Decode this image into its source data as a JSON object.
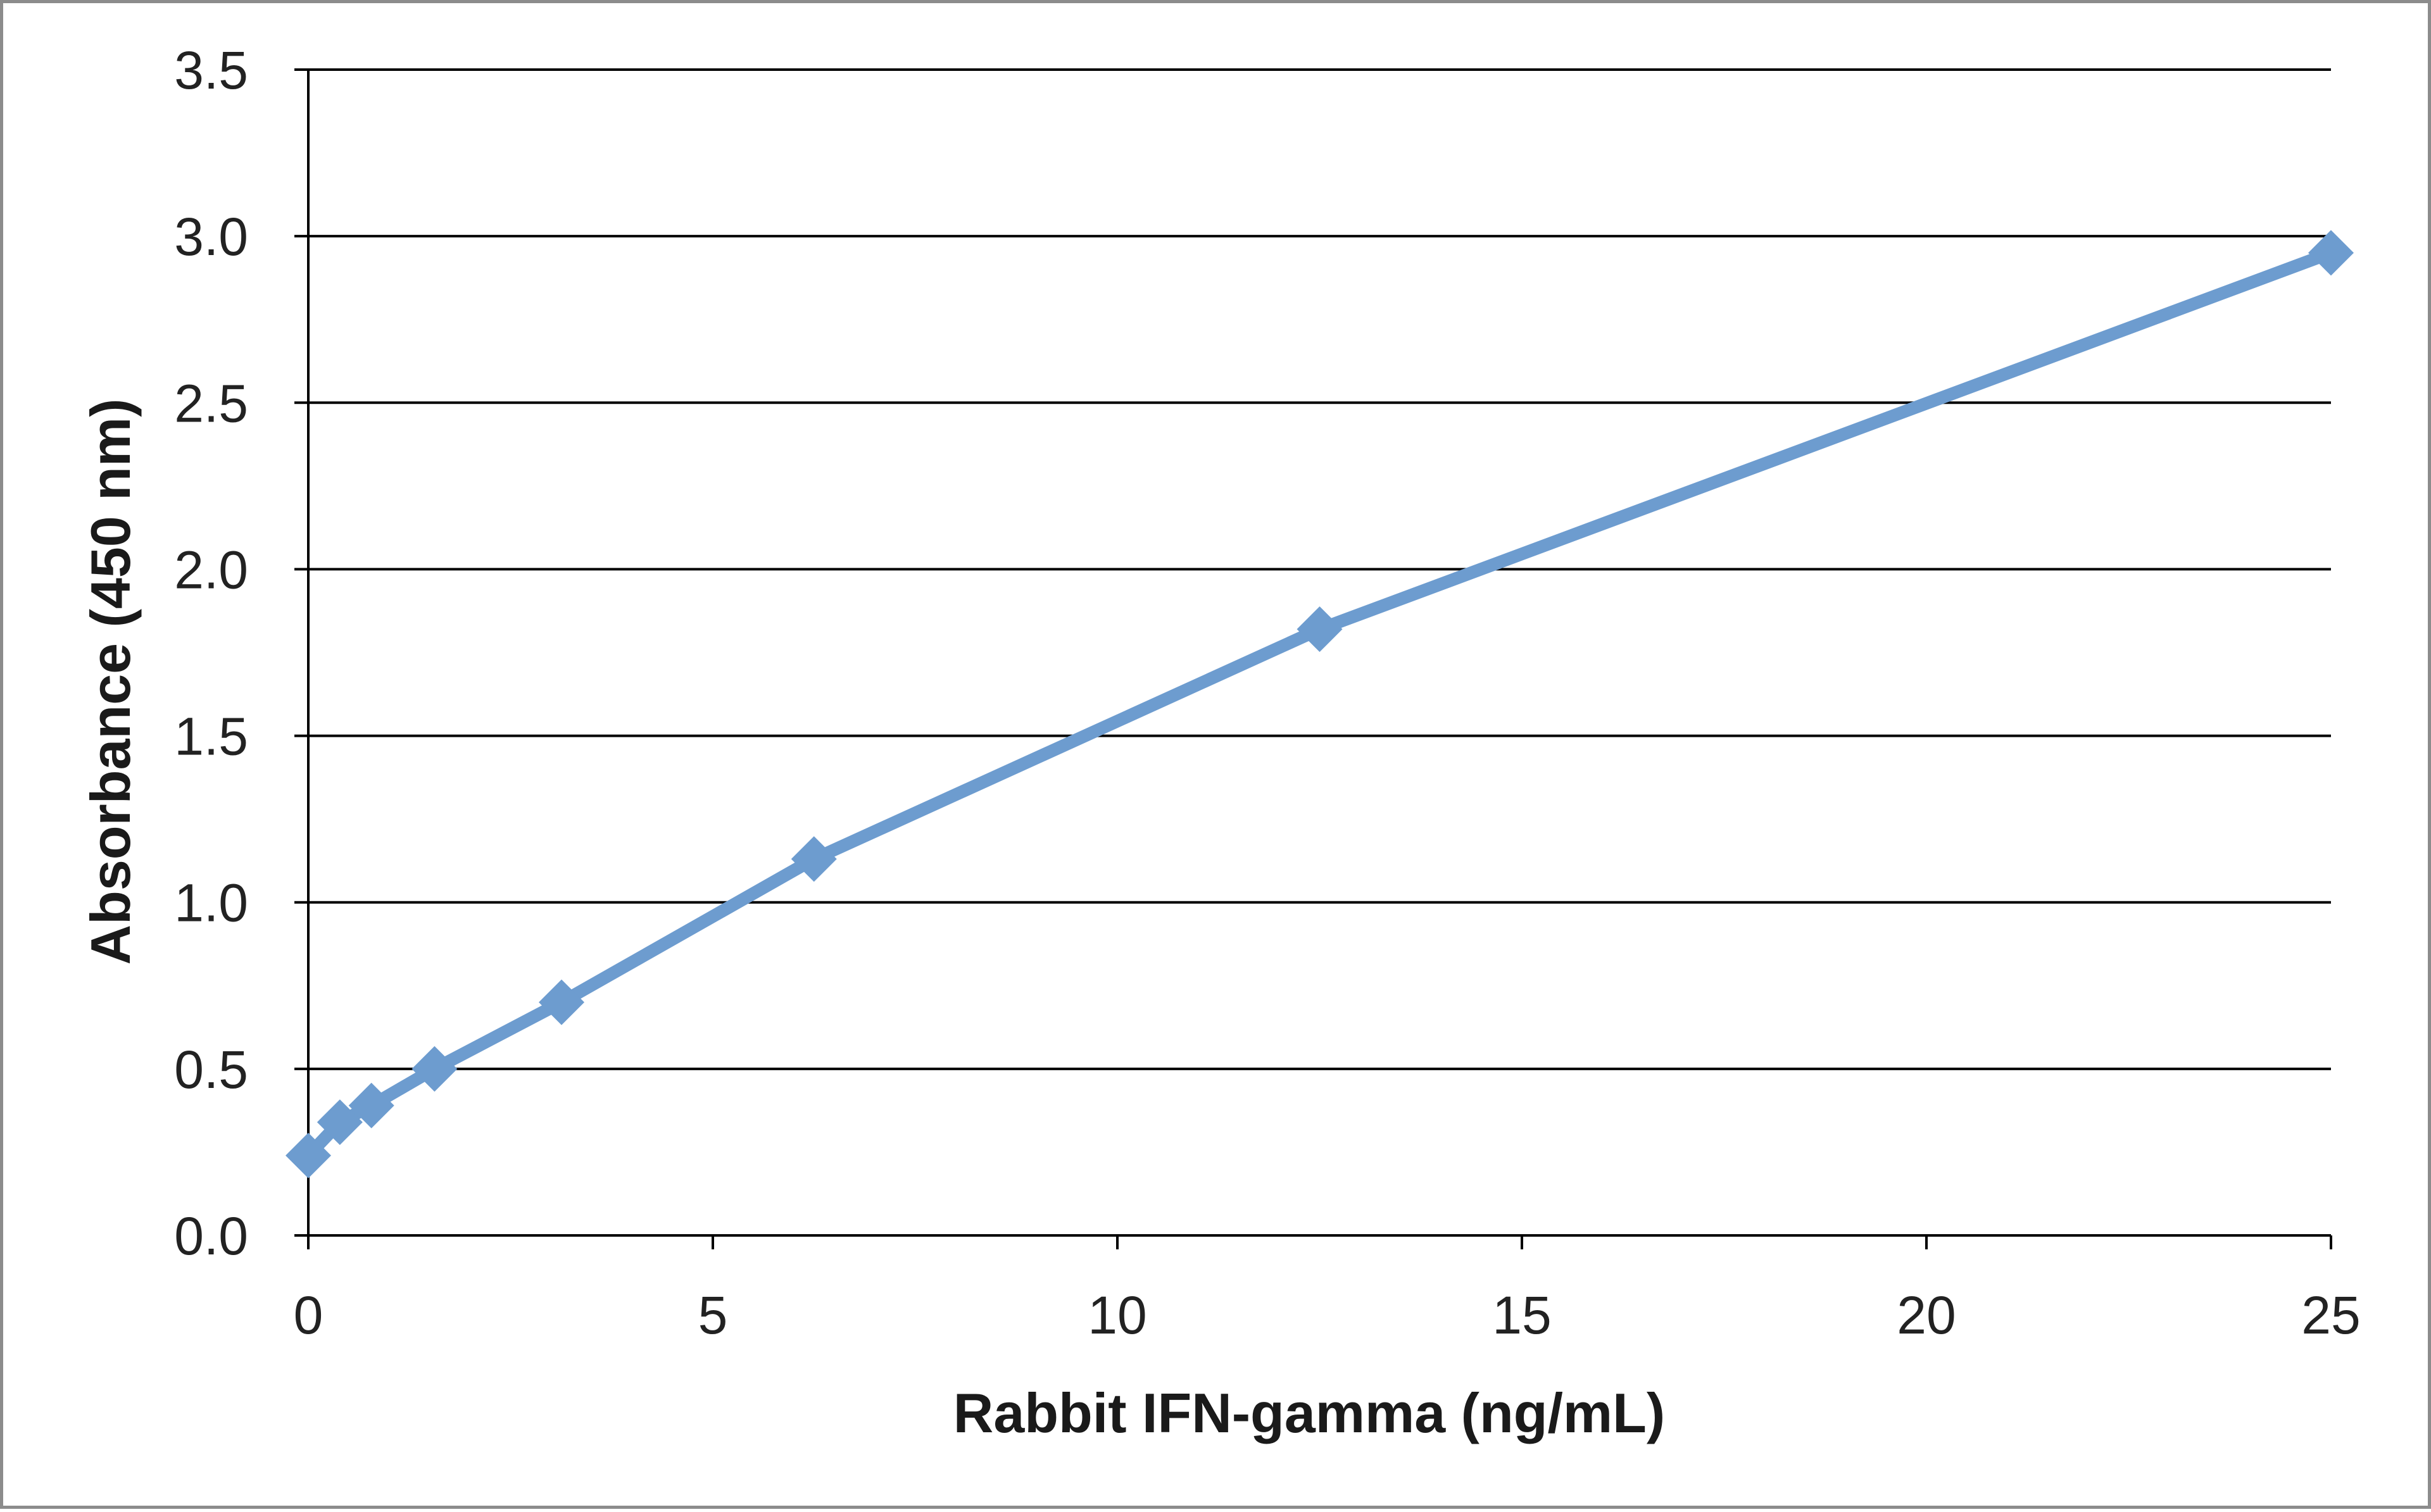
{
  "chart_data": {
    "type": "line",
    "title": "",
    "xlabel": "Rabbit IFN-gamma (ng/mL)",
    "ylabel": "Absorbance  (450 nm)",
    "xlim": [
      0,
      25
    ],
    "ylim": [
      0,
      3.5
    ],
    "x_ticks": [
      "0",
      "5",
      "10",
      "15",
      "20",
      "25"
    ],
    "y_ticks": [
      "0.0",
      "0.5",
      "1.0",
      "1.5",
      "2.0",
      "2.5",
      "3.0",
      "3.5"
    ],
    "grid": "horizontal",
    "legend": "none",
    "marker": "diamond",
    "color": "#6d9ccf",
    "series": [
      {
        "x": [
          0,
          0.39,
          0.78,
          1.56,
          3.13,
          6.25,
          12.5,
          25
        ],
        "y": [
          0.24,
          0.34,
          0.39,
          0.5,
          0.7,
          1.13,
          1.82,
          2.95
        ]
      }
    ]
  }
}
